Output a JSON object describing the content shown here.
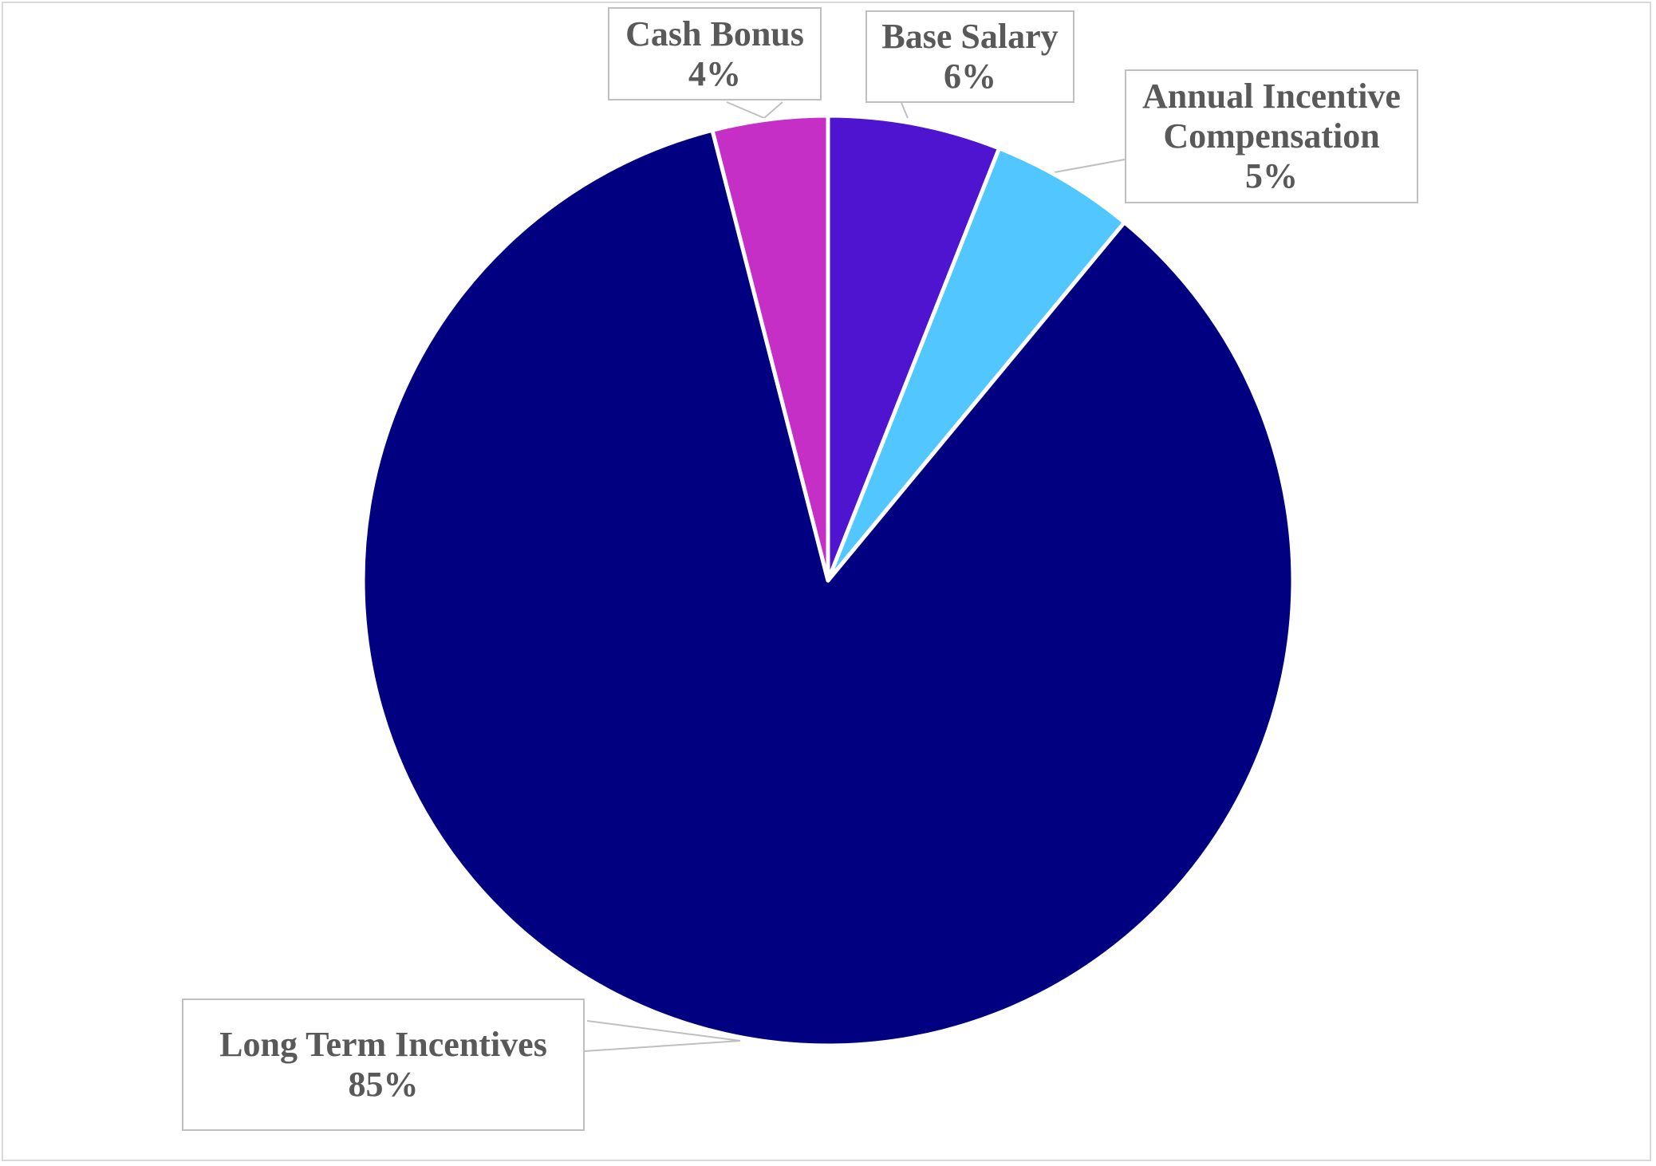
{
  "chart_data": {
    "type": "pie",
    "start": "12 o'clock",
    "direction": "clockwise",
    "slices": [
      {
        "label": "Base Salary",
        "value": 6,
        "value_label": "6%",
        "color": "#4e14d0"
      },
      {
        "label": "Annual Incentive Compensation",
        "label_lines": [
          "Annual Incentive",
          "Compensation"
        ],
        "value": 5,
        "value_label": "5%",
        "color": "#52c6ff"
      },
      {
        "label": "Long Term Incentives",
        "value": 85,
        "value_label": "85%",
        "color": "#000080"
      },
      {
        "label": "Cash Bonus",
        "value": 4,
        "value_label": "4%",
        "color": "#c62fc6"
      }
    ],
    "legend": "none",
    "data_labels": "callouts with category name and percentage"
  }
}
